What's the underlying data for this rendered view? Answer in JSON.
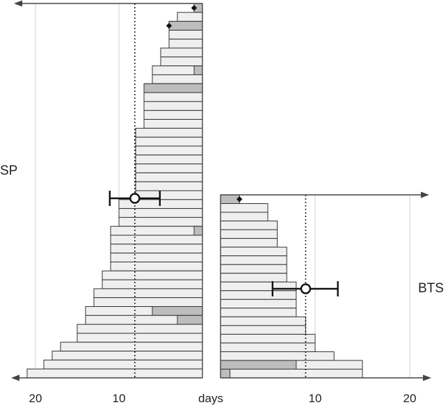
{
  "chart_data": {
    "type": "bar",
    "orientation": "horizontal",
    "x_tick_labels": [
      "20",
      "10",
      "days",
      "10",
      "20"
    ],
    "colors": {
      "bar_fill": "#efefef",
      "segment_fill": "#bdbdbd",
      "stroke": "#333333"
    },
    "panels": [
      {
        "label": "SP",
        "direction": "left",
        "xlim": [
          0,
          22
        ],
        "grid": [
          10,
          20
        ],
        "median": 8.1,
        "mean": 8.1,
        "error_interval": [
          11.1,
          5.1
        ],
        "bars": [
          {
            "value": 0,
            "shaded_from": 0,
            "marker": 1.0
          },
          {
            "value": 3.0
          },
          {
            "value": 4.0,
            "shaded_from": 0,
            "marker": 4.0
          },
          {
            "value": 4.0
          },
          {
            "value": 4.0
          },
          {
            "value": 5.0
          },
          {
            "value": 5.0
          },
          {
            "value": 6.0,
            "shaded_from": 0,
            "shaded_to": 1.0
          },
          {
            "value": 6.0
          },
          {
            "value": 7.0,
            "shaded_from": 0
          },
          {
            "value": 7.0
          },
          {
            "value": 7.0
          },
          {
            "value": 7.0
          },
          {
            "value": 7.0
          },
          {
            "value": 8.0
          },
          {
            "value": 8.0
          },
          {
            "value": 8.0
          },
          {
            "value": 8.0
          },
          {
            "value": 8.0
          },
          {
            "value": 8.0
          },
          {
            "value": 8.0
          },
          {
            "value": 8.0
          },
          {
            "value": 10.0
          },
          {
            "value": 10.0
          },
          {
            "value": 10.0
          },
          {
            "value": 11.0,
            "shaded_from": 0,
            "shaded_to": 1.0
          },
          {
            "value": 11.0
          },
          {
            "value": 11.0
          },
          {
            "value": 11.0
          },
          {
            "value": 11.0
          },
          {
            "value": 12.0
          },
          {
            "value": 12.0
          },
          {
            "value": 13.0
          },
          {
            "value": 13.0
          },
          {
            "value": 14.0,
            "shaded_from": 6.0,
            "shaded_to": 0
          },
          {
            "value": 14.0,
            "shaded_from": 3.0,
            "shaded_to": 0
          },
          {
            "value": 15.0
          },
          {
            "value": 15.0
          },
          {
            "value": 17.0
          },
          {
            "value": 18.0
          },
          {
            "value": 19.0
          },
          {
            "value": 21.0
          }
        ]
      },
      {
        "label": "BTS",
        "direction": "right",
        "xlim": [
          0,
          22
        ],
        "grid": [
          10,
          20
        ],
        "median": 9.0,
        "mean": 9.0,
        "error_interval": [
          5.5,
          12.4
        ],
        "bars": [
          {
            "value": 2.0,
            "shaded_from": 0,
            "marker": 2.0
          },
          {
            "value": 5.0
          },
          {
            "value": 5.0
          },
          {
            "value": 6.0
          },
          {
            "value": 6.0
          },
          {
            "value": 6.0
          },
          {
            "value": 7.0
          },
          {
            "value": 7.0
          },
          {
            "value": 7.0
          },
          {
            "value": 7.0
          },
          {
            "value": 8.0
          },
          {
            "value": 8.0
          },
          {
            "value": 8.0
          },
          {
            "value": 8.0
          },
          {
            "value": 9.0
          },
          {
            "value": 9.0
          },
          {
            "value": 10.0
          },
          {
            "value": 10.0
          },
          {
            "value": 12.0
          },
          {
            "value": 15.0,
            "shaded_from": 0,
            "shaded_to": 8.0
          },
          {
            "value": 15.0,
            "shaded_from": 0,
            "shaded_to": 1.0
          }
        ]
      }
    ]
  }
}
